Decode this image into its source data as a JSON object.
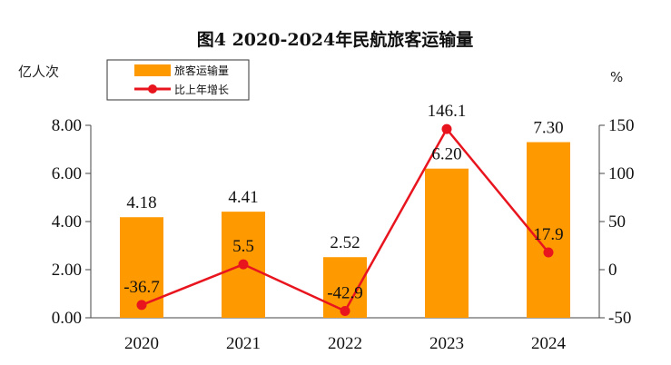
{
  "chart_data": {
    "type": "bar",
    "title": "图4  2020-2024年民航旅客运输量",
    "categories": [
      "2020",
      "2021",
      "2022",
      "2023",
      "2024"
    ],
    "series": [
      {
        "name": "旅客运输量",
        "type": "bar",
        "axis": "left",
        "values": [
          4.18,
          4.41,
          2.52,
          6.2,
          7.3
        ],
        "labels": [
          "4.18",
          "4.41",
          "2.52",
          "6.20",
          "7.30"
        ]
      },
      {
        "name": "比上年增长",
        "type": "line",
        "axis": "right",
        "values": [
          -36.7,
          5.5,
          -42.9,
          146.1,
          17.9
        ],
        "labels": [
          "-36.7",
          "5.5",
          "-42.9",
          "146.1",
          "17.9"
        ]
      }
    ],
    "ylabel_left": "亿人次",
    "ylabel_right": "%",
    "ylim_left": [
      0,
      8
    ],
    "yticks_left": [
      "0.00",
      "2.00",
      "4.00",
      "6.00",
      "8.00"
    ],
    "ylim_right": [
      -50,
      150
    ],
    "yticks_right": [
      "-50",
      "0",
      "50",
      "100",
      "150"
    ],
    "legend_position": "top-left",
    "grid": false,
    "colors": {
      "bar": "#FF9900",
      "line": "#E8141E",
      "axis": "#444444"
    }
  }
}
